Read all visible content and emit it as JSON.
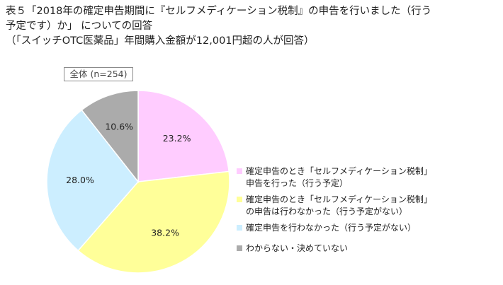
{
  "title_lines": [
    "表５「2018年の確定申告期間に『セルフメディケーション税制』の申告を行いました（行う",
    "予定です）か」 についての回答",
    "（「スイッチOTC医薬品」年間購入金額が12,001円超の人が回答）"
  ],
  "group_label": "全体 (n=254)",
  "chart_data": {
    "type": "pie",
    "start_angle_deg": 0,
    "direction": "clockwise",
    "slices": [
      {
        "label": "確定申告のとき「セルフメディケーション税制」\n申告を行った（行う予定）",
        "value": 23.2,
        "display": "23.2%",
        "color": "#FFCCFF"
      },
      {
        "label": "確定申告のとき「セルフメディケーション税制」\nの申告は行わなかった（行う予定がない）",
        "value": 38.2,
        "display": "38.2%",
        "color": "#FFFF99"
      },
      {
        "label": "確定申告を行わなかった（行う予定がない）",
        "value": 28.0,
        "display": "28.0%",
        "color": "#CCEEFF"
      },
      {
        "label": "わからない・決めていない",
        "value": 10.6,
        "display": "10.6%",
        "color": "#ABABAB"
      }
    ]
  }
}
